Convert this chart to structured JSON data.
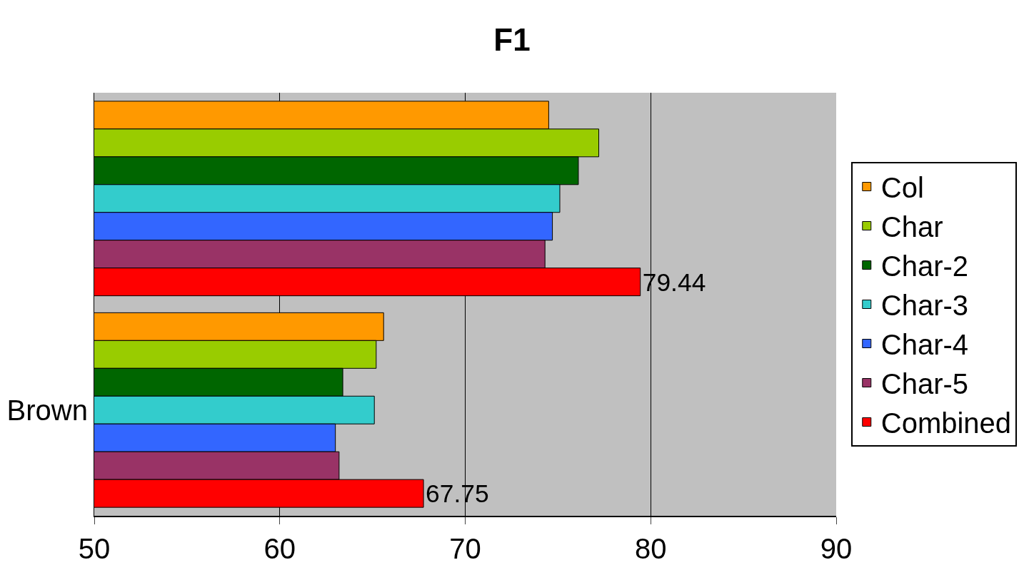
{
  "chart_data": {
    "type": "bar",
    "orientation": "horizontal",
    "title": "F1",
    "categories": [
      null,
      "Brown"
    ],
    "series": [
      {
        "name": "Col",
        "color": "#ff9900",
        "values": [
          74.5,
          65.6
        ]
      },
      {
        "name": "Char",
        "color": "#99cc00",
        "values": [
          77.2,
          65.2
        ]
      },
      {
        "name": "Char-2",
        "color": "#006600",
        "values": [
          76.1,
          63.4
        ]
      },
      {
        "name": "Char-3",
        "color": "#33cccc",
        "values": [
          75.1,
          65.1
        ]
      },
      {
        "name": "Char-4",
        "color": "#3366ff",
        "values": [
          74.7,
          63.0
        ]
      },
      {
        "name": "Char-5",
        "color": "#993366",
        "values": [
          74.3,
          63.2
        ]
      },
      {
        "name": "Combined",
        "color": "#ff0000",
        "values": [
          79.44,
          67.75
        ],
        "value_labels": [
          "79.44",
          "67.75"
        ]
      }
    ],
    "xlim": [
      50,
      90
    ],
    "xticks": [
      50,
      60,
      70,
      80,
      90
    ],
    "grid": "x",
    "legend": "right"
  }
}
